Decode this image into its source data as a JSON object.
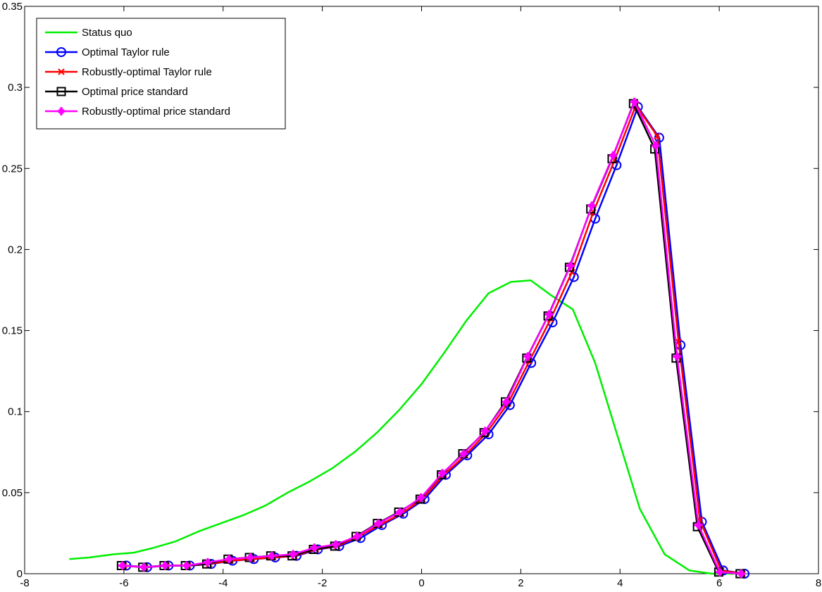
{
  "chart_data": {
    "type": "line",
    "title": "",
    "xlabel": "",
    "ylabel": "",
    "xlim": [
      -8,
      8
    ],
    "ylim": [
      0,
      0.35
    ],
    "xticks": [
      -8,
      -6,
      -4,
      -2,
      0,
      2,
      4,
      6,
      8
    ],
    "yticks": [
      0,
      0.05,
      0.1,
      0.15,
      0.2,
      0.25,
      0.3,
      0.35
    ],
    "xtick_labels": [
      "-8",
      "-6",
      "-4",
      "-2",
      "0",
      "2",
      "4",
      "6",
      "8"
    ],
    "ytick_labels": [
      "0",
      "0.05",
      "0.1",
      "0.15",
      "0.2",
      "0.25",
      "0.3",
      "0.35"
    ],
    "grid": false,
    "legend_position": "top-left",
    "series": [
      {
        "name": "Status quo",
        "color": "#00ee00",
        "marker": "none",
        "x": [
          -7.1,
          -6.7,
          -6.2,
          -5.8,
          -5.4,
          -4.95,
          -4.5,
          -4.05,
          -3.6,
          -3.15,
          -2.7,
          -2.25,
          -1.8,
          -1.35,
          -0.9,
          -0.45,
          0.0,
          0.45,
          0.9,
          1.35,
          1.8,
          2.2,
          2.6,
          3.05,
          3.5,
          3.95,
          4.4,
          4.9,
          5.4,
          5.85,
          6.3
        ],
        "values": [
          0.009,
          0.01,
          0.012,
          0.013,
          0.016,
          0.02,
          0.026,
          0.031,
          0.036,
          0.042,
          0.05,
          0.057,
          0.065,
          0.075,
          0.087,
          0.101,
          0.117,
          0.136,
          0.156,
          0.173,
          0.18,
          0.181,
          0.172,
          0.163,
          0.13,
          0.085,
          0.04,
          0.012,
          0.002,
          0.0,
          0.0
        ]
      },
      {
        "name": "Optimal Taylor rule",
        "color": "#0000ff",
        "marker": "circle",
        "x": [
          -5.95,
          -5.53,
          -5.1,
          -4.67,
          -4.24,
          -3.81,
          -3.38,
          -2.95,
          -2.52,
          -2.09,
          -1.66,
          -1.23,
          -0.8,
          -0.37,
          0.06,
          0.49,
          0.92,
          1.35,
          1.78,
          2.21,
          2.64,
          3.07,
          3.5,
          3.93,
          4.36,
          4.79,
          5.22,
          5.65,
          6.08,
          6.51
        ],
        "values": [
          0.005,
          0.004,
          0.005,
          0.005,
          0.006,
          0.008,
          0.009,
          0.01,
          0.011,
          0.015,
          0.017,
          0.022,
          0.03,
          0.037,
          0.046,
          0.061,
          0.073,
          0.086,
          0.104,
          0.13,
          0.155,
          0.183,
          0.219,
          0.252,
          0.288,
          0.269,
          0.141,
          0.032,
          0.002,
          0.0
        ]
      },
      {
        "name": "Robustly-optimal Taylor rule",
        "color": "#ff0000",
        "marker": "x",
        "x": [
          -6.0,
          -5.57,
          -5.14,
          -4.71,
          -4.28,
          -3.85,
          -3.42,
          -2.99,
          -2.56,
          -2.13,
          -1.7,
          -1.27,
          -0.84,
          -0.41,
          0.02,
          0.45,
          0.88,
          1.31,
          1.74,
          2.17,
          2.6,
          3.03,
          3.46,
          3.89,
          4.32,
          4.75,
          5.18,
          5.61,
          6.04,
          6.47
        ],
        "values": [
          0.005,
          0.004,
          0.005,
          0.005,
          0.006,
          0.008,
          0.009,
          0.01,
          0.011,
          0.015,
          0.017,
          0.023,
          0.03,
          0.037,
          0.046,
          0.061,
          0.073,
          0.087,
          0.105,
          0.131,
          0.157,
          0.186,
          0.223,
          0.255,
          0.289,
          0.27,
          0.143,
          0.033,
          0.002,
          0.0
        ]
      },
      {
        "name": "Optimal price standard",
        "color": "#000000",
        "marker": "square",
        "x": [
          -6.05,
          -5.62,
          -5.19,
          -4.76,
          -4.33,
          -3.9,
          -3.47,
          -3.04,
          -2.61,
          -2.18,
          -1.75,
          -1.32,
          -0.89,
          -0.46,
          -0.03,
          0.4,
          0.83,
          1.26,
          1.69,
          2.12,
          2.55,
          2.98,
          3.41,
          3.84,
          4.27,
          4.7,
          5.13,
          5.56,
          5.99,
          6.42
        ],
        "values": [
          0.005,
          0.004,
          0.005,
          0.005,
          0.006,
          0.009,
          0.01,
          0.011,
          0.011,
          0.015,
          0.017,
          0.023,
          0.031,
          0.038,
          0.046,
          0.061,
          0.074,
          0.087,
          0.106,
          0.133,
          0.159,
          0.189,
          0.225,
          0.256,
          0.29,
          0.262,
          0.133,
          0.029,
          0.001,
          0.0
        ]
      },
      {
        "name": "Robustly-optimal price standard",
        "color": "#ff00ff",
        "marker": "plus-bold",
        "x": [
          -6.03,
          -5.6,
          -5.17,
          -4.74,
          -4.31,
          -3.88,
          -3.45,
          -3.02,
          -2.59,
          -2.16,
          -1.73,
          -1.3,
          -0.87,
          -0.44,
          -0.01,
          0.42,
          0.85,
          1.28,
          1.71,
          2.14,
          2.57,
          3.0,
          3.43,
          3.86,
          4.29,
          4.72,
          5.15,
          5.58,
          6.01,
          6.44
        ],
        "values": [
          0.005,
          0.004,
          0.005,
          0.005,
          0.007,
          0.009,
          0.01,
          0.011,
          0.012,
          0.016,
          0.018,
          0.023,
          0.031,
          0.038,
          0.047,
          0.062,
          0.074,
          0.088,
          0.106,
          0.134,
          0.16,
          0.19,
          0.227,
          0.258,
          0.291,
          0.264,
          0.134,
          0.03,
          0.001,
          0.0
        ]
      }
    ]
  }
}
